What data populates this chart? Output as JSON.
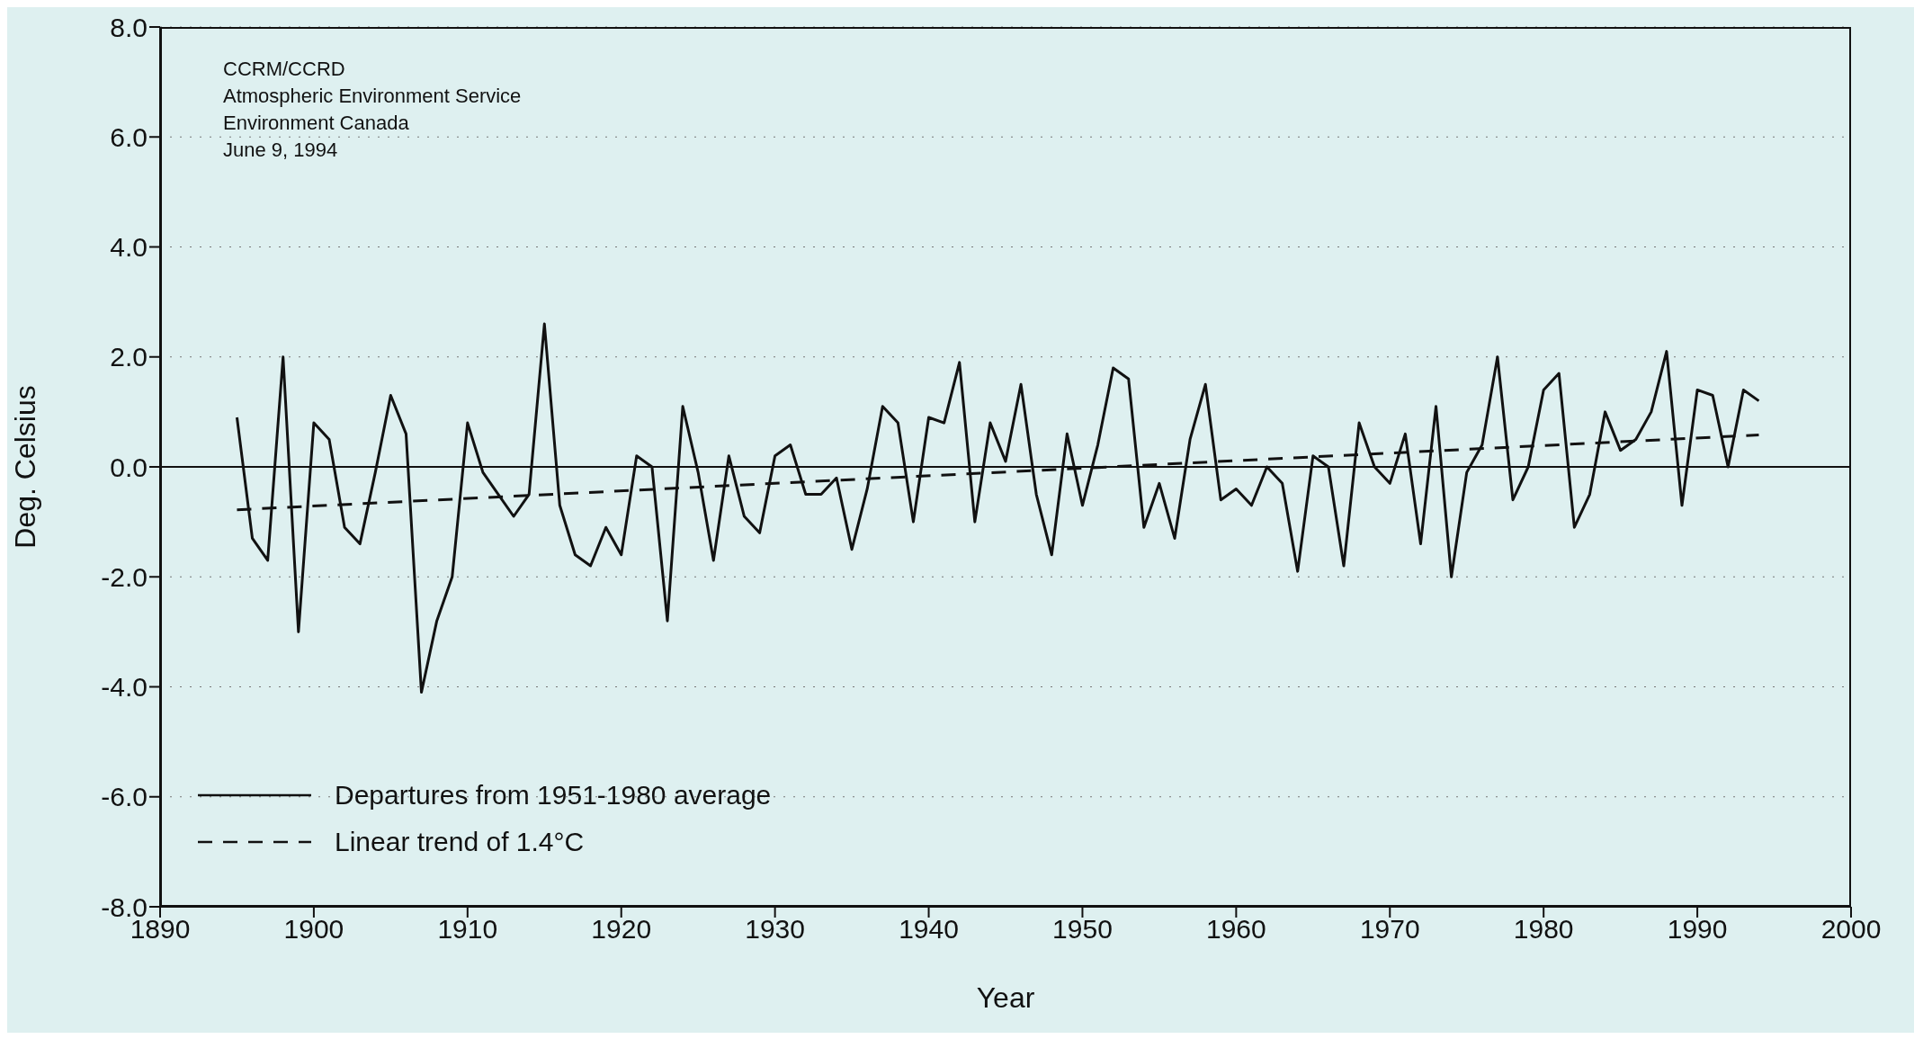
{
  "chart_data": {
    "type": "line",
    "annotations": [
      "CCRM/CCRD",
      "Atmospheric Environment Service",
      "Environment Canada",
      "June 9, 1994"
    ],
    "xlabel": "Year",
    "ylabel": "Deg. Celsius",
    "x": [
      1895,
      1896,
      1897,
      1898,
      1899,
      1900,
      1901,
      1902,
      1903,
      1904,
      1905,
      1906,
      1907,
      1908,
      1909,
      1910,
      1911,
      1912,
      1913,
      1914,
      1915,
      1916,
      1917,
      1918,
      1919,
      1920,
      1921,
      1922,
      1923,
      1924,
      1925,
      1926,
      1927,
      1928,
      1929,
      1930,
      1931,
      1932,
      1933,
      1934,
      1935,
      1936,
      1937,
      1938,
      1939,
      1940,
      1941,
      1942,
      1943,
      1944,
      1945,
      1946,
      1947,
      1948,
      1949,
      1950,
      1951,
      1952,
      1953,
      1954,
      1955,
      1956,
      1957,
      1958,
      1959,
      1960,
      1961,
      1962,
      1963,
      1964,
      1965,
      1966,
      1967,
      1968,
      1969,
      1970,
      1971,
      1972,
      1973,
      1974,
      1975,
      1976,
      1977,
      1978,
      1979,
      1980,
      1981,
      1982,
      1983,
      1984,
      1985,
      1986,
      1987,
      1988,
      1989,
      1990,
      1991,
      1992,
      1993,
      1994
    ],
    "series": [
      {
        "name": "Departures from 1951-1980 average",
        "color": "#111111",
        "line_style": "solid",
        "values": [
          0.9,
          -1.3,
          -1.7,
          2.0,
          -3.0,
          0.8,
          0.5,
          -1.1,
          -1.4,
          -0.1,
          1.3,
          0.6,
          -4.1,
          -2.8,
          -2.0,
          0.8,
          -0.1,
          -0.5,
          -0.9,
          -0.5,
          2.6,
          -0.7,
          -1.6,
          -1.8,
          -1.1,
          -1.6,
          0.2,
          0.0,
          -2.8,
          1.1,
          -0.1,
          -1.7,
          0.2,
          -0.9,
          -1.2,
          0.2,
          0.4,
          -0.5,
          -0.5,
          -0.2,
          -1.5,
          -0.4,
          1.1,
          0.8,
          -1.0,
          0.9,
          0.8,
          1.9,
          -1.0,
          0.8,
          0.1,
          1.5,
          -0.5,
          -1.6,
          0.6,
          -0.7,
          0.4,
          1.8,
          1.6,
          -1.1,
          -0.3,
          -1.3,
          0.5,
          1.5,
          -0.6,
          -0.4,
          -0.7,
          0.0,
          -0.3,
          -1.9,
          0.2,
          0.0,
          -1.8,
          0.8,
          0.0,
          -0.3,
          0.6,
          -1.4,
          1.1,
          -2.0,
          -0.1,
          0.4,
          2.0,
          -0.6,
          0.0,
          1.4,
          1.7,
          -1.1,
          -0.5,
          1.0,
          0.3,
          0.5,
          1.0,
          2.1,
          -0.7,
          1.4,
          1.3,
          0.0,
          1.4,
          1.2
        ]
      },
      {
        "name": "Linear trend of 1.4°C",
        "color": "#111111",
        "line_style": "dashed",
        "x": [
          1895,
          1994
        ],
        "values": [
          -0.78,
          0.58
        ]
      }
    ],
    "xlim": [
      1890,
      2000
    ],
    "xticks": [
      1890,
      1900,
      1910,
      1920,
      1930,
      1940,
      1950,
      1960,
      1970,
      1980,
      1990,
      2000
    ],
    "ylim": [
      -8,
      8
    ],
    "yticks": [
      {
        "value": -8,
        "label": "-8.0"
      },
      {
        "value": -6,
        "label": "-6.0"
      },
      {
        "value": -4,
        "label": "-4.0"
      },
      {
        "value": -2,
        "label": "-2.0"
      },
      {
        "value": 0,
        "label": "0.0"
      },
      {
        "value": 2,
        "label": "2.0"
      },
      {
        "value": 4,
        "label": "4.0"
      },
      {
        "value": 6,
        "label": "6.0"
      },
      {
        "value": 8,
        "label": "8.0"
      }
    ],
    "ref_lines": [
      {
        "axis": "y",
        "value": 0,
        "color": "#111111"
      }
    ],
    "grid": "y",
    "legend": "bottom left"
  }
}
